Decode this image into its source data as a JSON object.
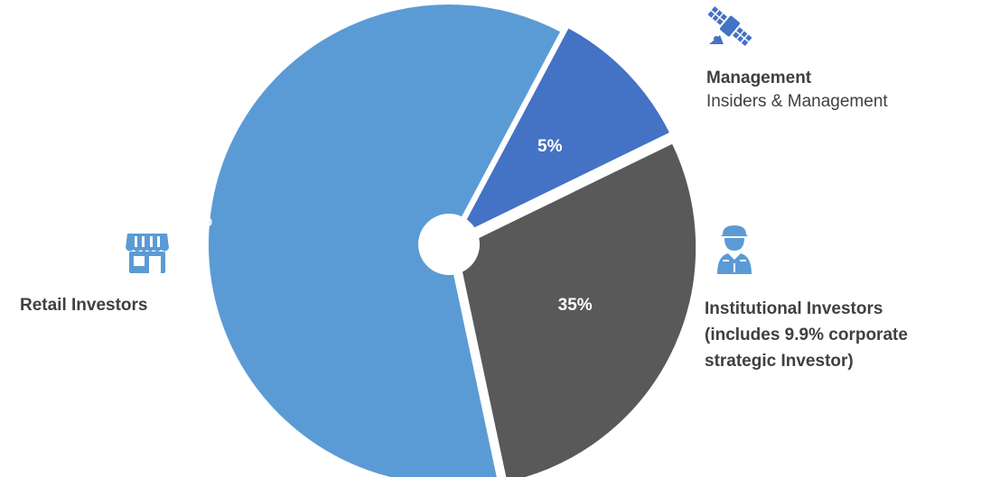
{
  "chart_data": {
    "type": "pie",
    "donut_hole": true,
    "slices": [
      {
        "label": "Retail Investors",
        "value": 60,
        "display": "60%",
        "color": "#5B9BD5"
      },
      {
        "label": "Management",
        "value": 5,
        "display": "5%",
        "color": "#4472C4"
      },
      {
        "label": "Institutional Investors",
        "value": 35,
        "display": "35%",
        "color": "#595959"
      }
    ]
  },
  "legend": {
    "retail": {
      "title": "Retail Investors",
      "icon": "storefront-icon"
    },
    "management": {
      "title": "Management",
      "subtitle": "Insiders & Management",
      "icon": "satellite-icon"
    },
    "institutional": {
      "line1": "Institutional Investors",
      "line2": "(includes 9.9% corporate",
      "line3": "strategic Investor)",
      "icon": "soldier-icon"
    }
  },
  "colors": {
    "icon": "#5B9BD5",
    "label_text": "#404040",
    "data_label_text": "#ffffff"
  }
}
